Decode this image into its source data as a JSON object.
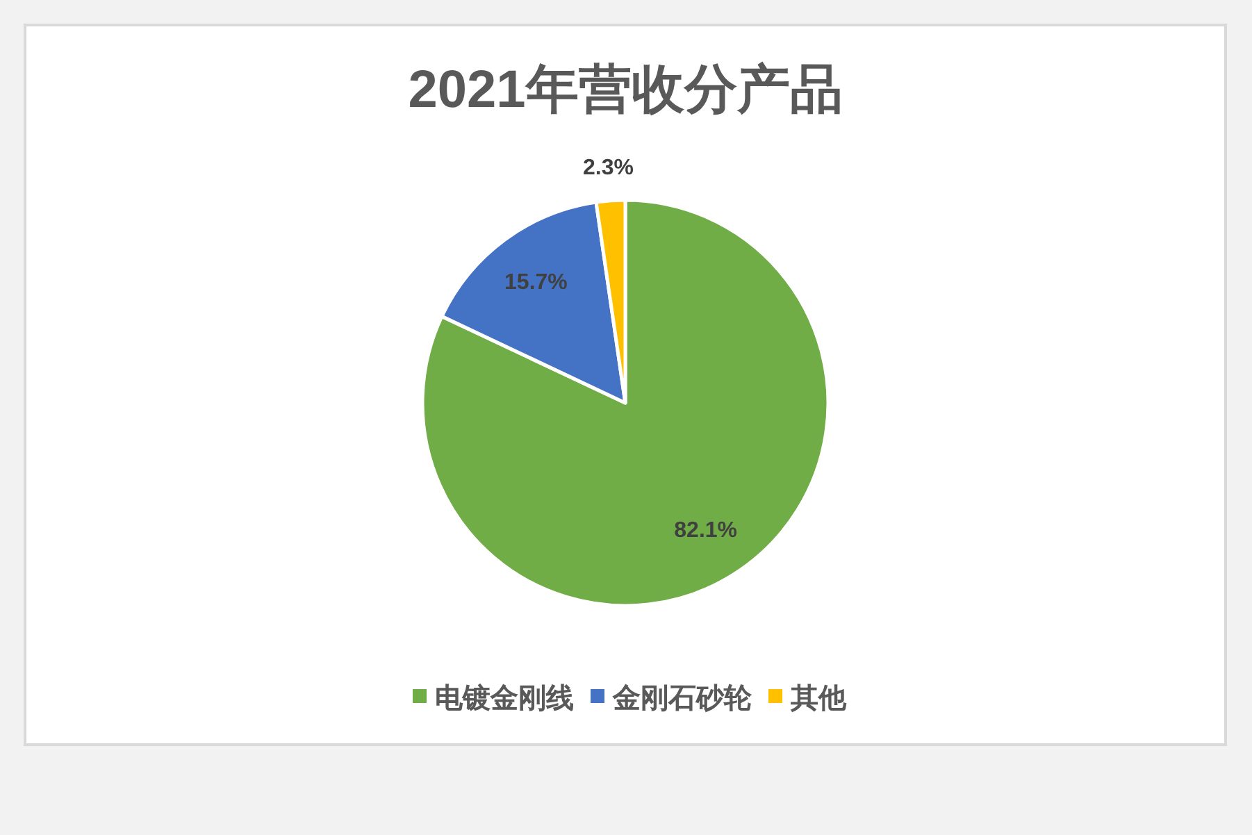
{
  "chart_data": {
    "type": "pie",
    "title": "2021年营收分产品",
    "categories": [
      "电镀金刚线",
      "金刚石砂轮",
      "其他"
    ],
    "values": [
      82.1,
      15.7,
      2.3
    ],
    "value_labels": [
      "82.1%",
      "15.7%",
      "2.3%"
    ],
    "colors": [
      "#70ad47",
      "#4472c4",
      "#ffc000"
    ],
    "legend": "bottom"
  }
}
